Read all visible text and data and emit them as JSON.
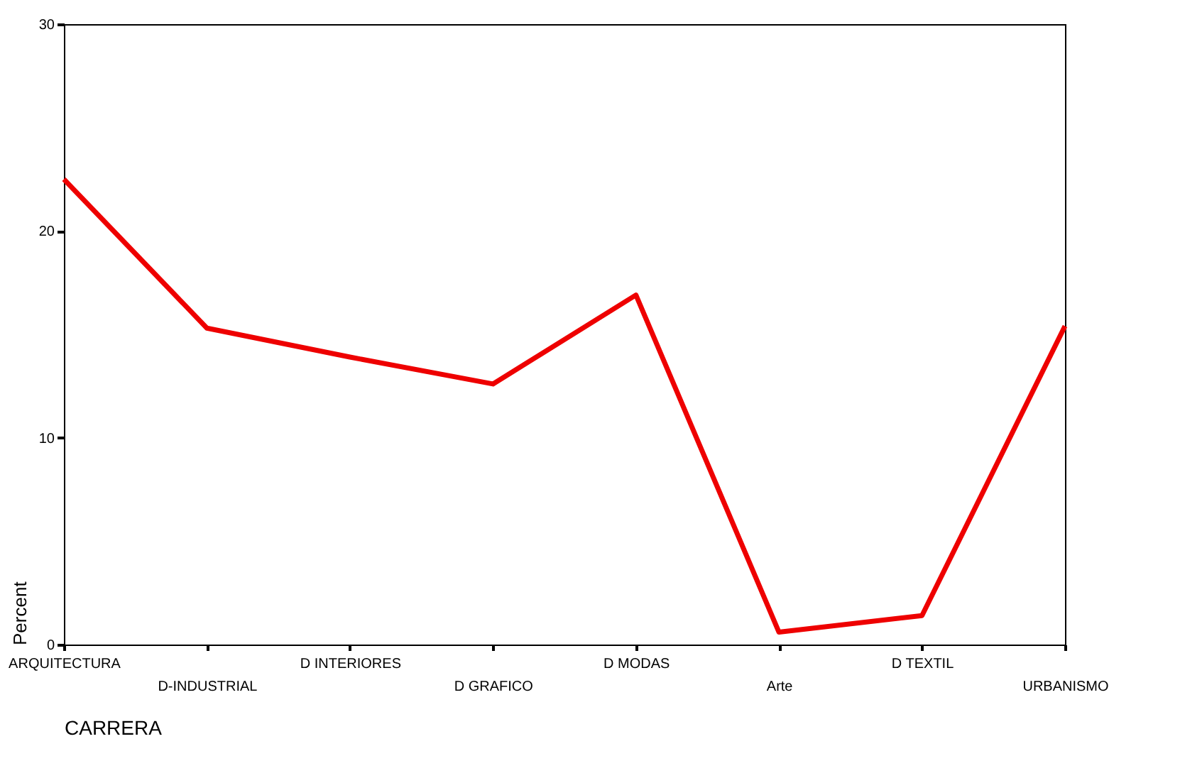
{
  "chart_data": {
    "type": "line",
    "categories": [
      "ARQUITECTURA",
      "D-INDUSTRIAL",
      "D INTERIORES",
      "D GRAFICO",
      "D MODAS",
      "Arte",
      "D TEXTIL",
      "URBANISMO"
    ],
    "series": [
      {
        "color": "#ee0000",
        "values": [
          22.5,
          15.3,
          13.9,
          12.6,
          16.9,
          0.6,
          1.4,
          15.4
        ]
      }
    ],
    "xlabel": "CARRERA",
    "ylabel": "Percent",
    "ylim": [
      0,
      30
    ],
    "yticks": [
      0,
      10,
      20,
      30
    ],
    "grid": false,
    "marker": "none",
    "line_style": "solid"
  }
}
